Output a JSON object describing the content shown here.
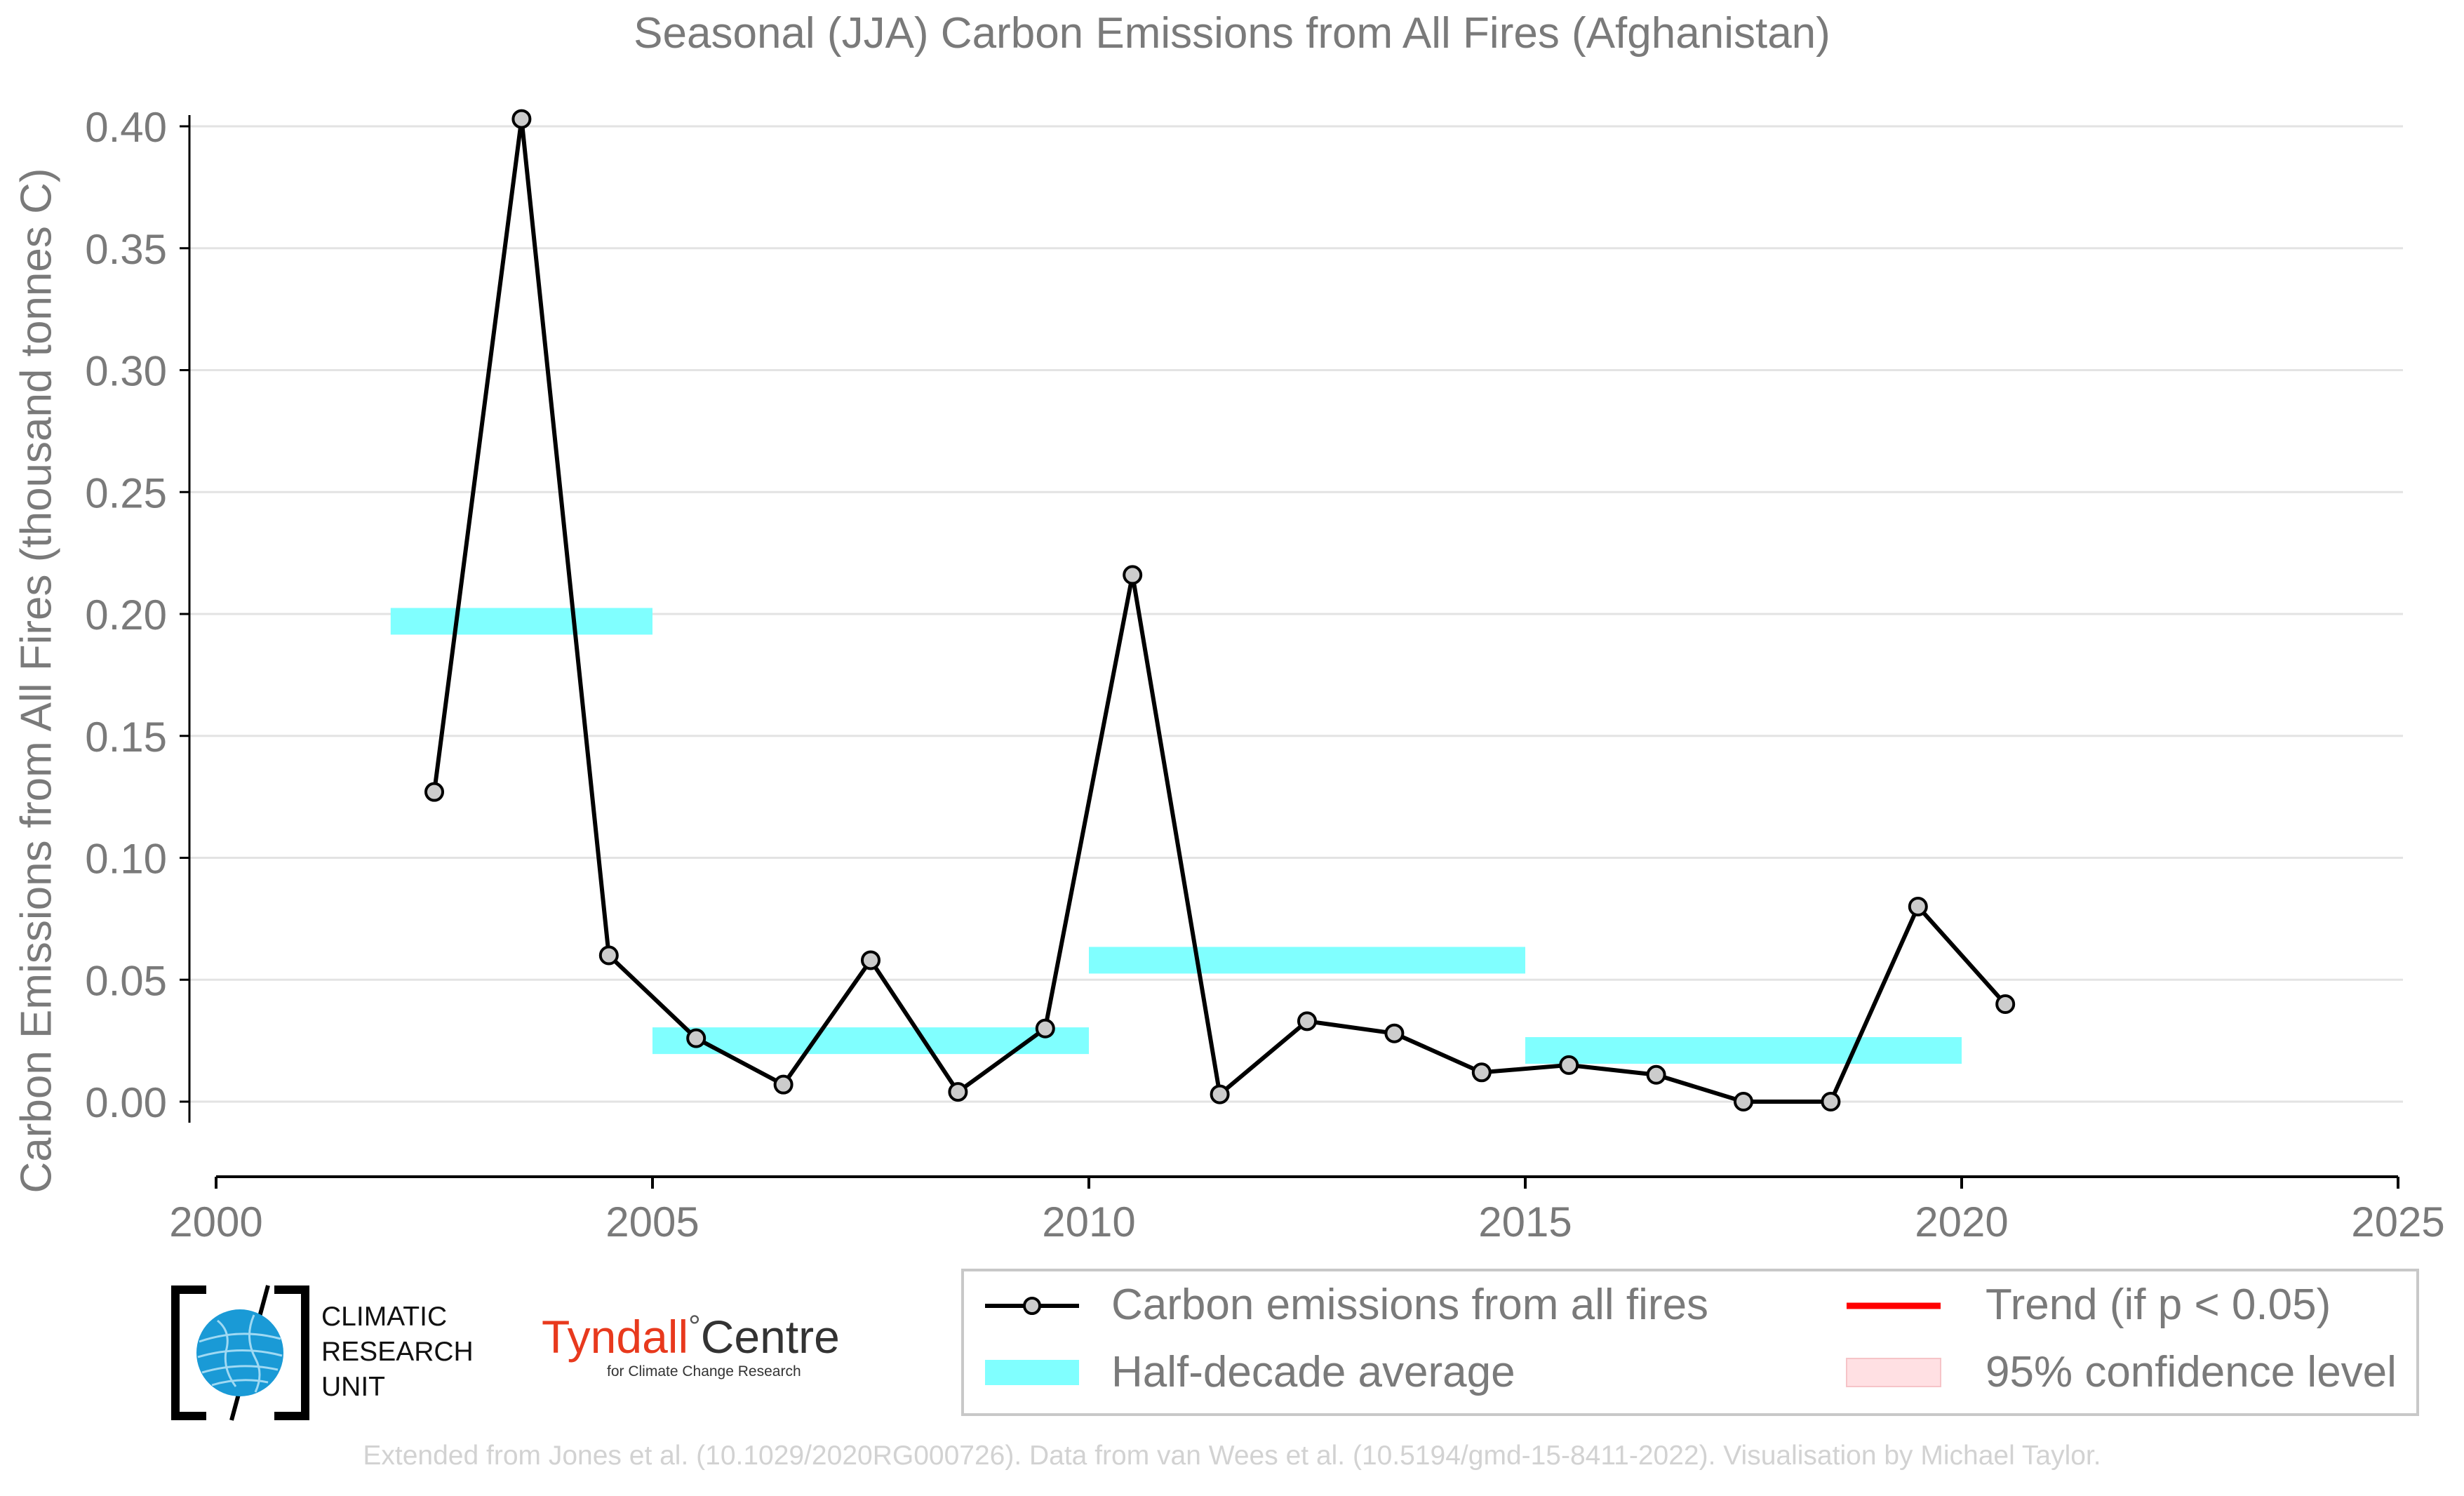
{
  "chart_data": {
    "type": "line",
    "title": "Seasonal (JJA) Carbon Emissions from All Fires (Afghanistan)",
    "ylabel": "Carbon Emissions from All Fires (thousand tonnes C)",
    "xlabel": "",
    "xlim": [
      2000,
      2025
    ],
    "ylim": [
      -0.03,
      0.41
    ],
    "x_ticks": [
      "2000",
      "2005",
      "2010",
      "2015",
      "2020",
      "2025"
    ],
    "y_ticks": [
      "0.00",
      "0.05",
      "0.10",
      "0.15",
      "0.20",
      "0.25",
      "0.30",
      "0.35",
      "0.40"
    ],
    "grid": "horizontal",
    "series": [
      {
        "name": "Carbon emissions from all fires",
        "color": "#000000",
        "marker_color": "#cccccc",
        "x": [
          2002.5,
          2003.5,
          2004.5,
          2005.5,
          2006.5,
          2007.5,
          2008.5,
          2009.5,
          2010.5,
          2011.5,
          2012.5,
          2013.5,
          2014.5,
          2015.5,
          2016.5,
          2017.5,
          2018.5,
          2019.5,
          2020.5
        ],
        "values": [
          0.127,
          0.403,
          0.06,
          0.026,
          0.007,
          0.058,
          0.004,
          0.03,
          0.216,
          0.003,
          0.033,
          0.028,
          0.012,
          0.015,
          0.011,
          0.0,
          0.0,
          0.08,
          0.04
        ]
      }
    ],
    "half_decade_average": {
      "name": "Half-decade average",
      "color": "#80ffff",
      "segments": [
        {
          "x_start": 2002,
          "x_end": 2005,
          "value": 0.197
        },
        {
          "x_start": 2005,
          "x_end": 2010,
          "value": 0.025
        },
        {
          "x_start": 2010,
          "x_end": 2015,
          "value": 0.058
        },
        {
          "x_start": 2015,
          "x_end": 2020,
          "value": 0.021
        }
      ]
    },
    "legend": {
      "placement": "bottom-right",
      "items": [
        {
          "label": "Carbon emissions from all fires",
          "symbol": "line-marker",
          "color": "#000000"
        },
        {
          "label": "Trend (if p < 0.05)",
          "symbol": "line",
          "color": "#ff0000"
        },
        {
          "label": "Half-decade average",
          "symbol": "band",
          "color": "#80ffff"
        },
        {
          "label": "95% confidence level",
          "symbol": "band",
          "color": "#ffe0e3"
        }
      ]
    }
  },
  "logos": {
    "cru_lines": [
      "CLIMATIC",
      "RESEARCH",
      "UNIT"
    ],
    "tyndall_main_a": "Tyndall",
    "tyndall_degree": "°",
    "tyndall_main_b": "Centre",
    "tyndall_sub": "for Climate Change Research",
    "tyndall_color": "#e8391d",
    "cru_color": "#1a9ad6"
  },
  "credit": "Extended from Jones et al. (10.1029/2020RG000726). Data from van Wees et al. (10.5194/gmd-15-8411-2022). Visualisation by Michael Taylor."
}
